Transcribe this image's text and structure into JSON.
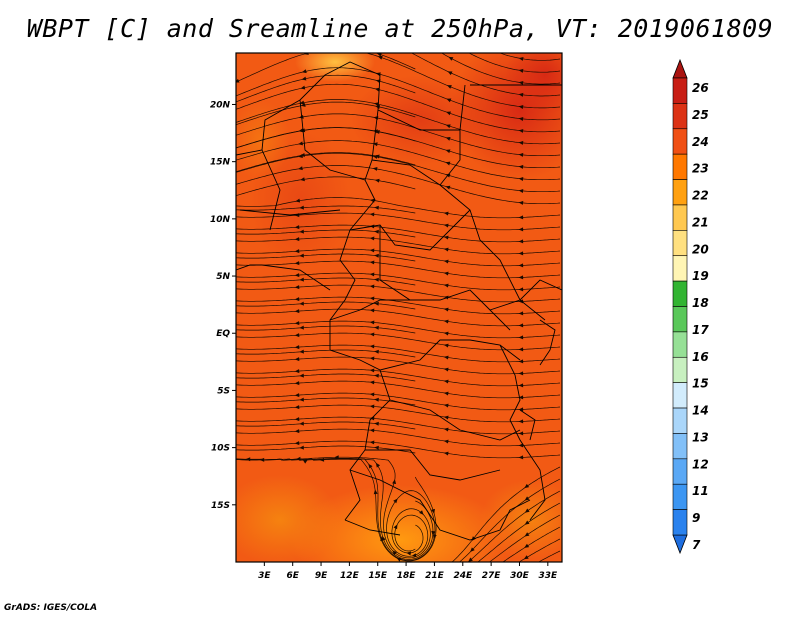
{
  "title": "WBPT [C] and Sreamline at 250hPa, VT: 2019061809",
  "credit": "GrADS: IGES/COLA",
  "map": {
    "lat_labels": [
      "20N",
      "15N",
      "10N",
      "5N",
      "EQ",
      "5S",
      "10S",
      "15S"
    ],
    "lon_labels": [
      "3E",
      "6E",
      "9E",
      "12E",
      "15E",
      "18E",
      "21E",
      "24E",
      "27E",
      "30E",
      "33E"
    ],
    "lat_values": [
      20,
      15,
      10,
      5,
      0,
      -5,
      -10,
      -15
    ],
    "lon_values": [
      3,
      6,
      9,
      12,
      15,
      18,
      21,
      24,
      27,
      30,
      33
    ],
    "lon_range": [
      0,
      34.5
    ],
    "lat_range": [
      -20,
      24.5
    ],
    "field": "WBPT",
    "units": "C",
    "level": "250hPa"
  },
  "colorbar": {
    "levels": [
      "7",
      "9",
      "11",
      "12",
      "13",
      "14",
      "15",
      "16",
      "17",
      "18",
      "19",
      "20",
      "21",
      "22",
      "23",
      "24",
      "25",
      "26"
    ],
    "colors": [
      "#1e6ee0",
      "#2a82ee",
      "#3c96f2",
      "#5aa8f5",
      "#82c0f8",
      "#aad6fa",
      "#d2ecfc",
      "#c8f0c0",
      "#96e096",
      "#5ac85a",
      "#32b432",
      "#fff5b4",
      "#ffe080",
      "#ffc850",
      "#ffa010",
      "#ff7800",
      "#f05014",
      "#dc3214",
      "#c81e14",
      "#aa1410"
    ],
    "extend": "both"
  }
}
